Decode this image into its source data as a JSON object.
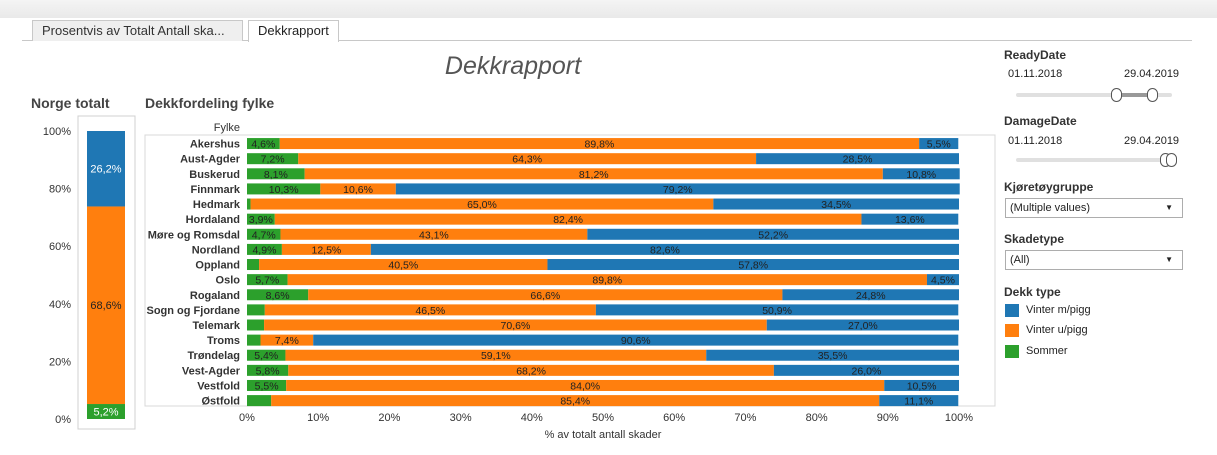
{
  "tabs": [
    {
      "label": "Prosentvis av Totalt Antall ska..."
    },
    {
      "label": "Dekkrapport"
    }
  ],
  "dashboard_title": "Dekkrapport",
  "left_panel": {
    "title": "Norge totalt"
  },
  "right_panel": {
    "title": "Dekkfordeling fylke"
  },
  "colors": {
    "vinter_m_pigg": "#1f77b4",
    "vinter_u_pigg": "#ff7f0e",
    "sommer": "#2ca02c"
  },
  "filters": {
    "ready_date": {
      "label": "ReadyDate",
      "start": "01.11.2018",
      "end": "29.04.2019"
    },
    "damage_date": {
      "label": "DamageDate",
      "start": "01.11.2018",
      "end": "29.04.2019"
    },
    "vehicle_group": {
      "label": "Kjøretøygruppe",
      "value": "(Multiple values)"
    },
    "damage_type": {
      "label": "Skadetype",
      "value": "(All)"
    }
  },
  "legend": {
    "title": "Dekk type",
    "items": [
      {
        "label": "Vinter m/pigg",
        "color": "#1f77b4"
      },
      {
        "label": "Vinter u/pigg",
        "color": "#ff7f0e"
      },
      {
        "label": "Sommer",
        "color": "#2ca02c"
      }
    ]
  },
  "chart_data": [
    {
      "type": "bar",
      "stacked": true,
      "orientation": "vertical",
      "title": "Norge totalt",
      "categories": [
        "Norge"
      ],
      "ylim": [
        0,
        100
      ],
      "y_ticks": [
        "0%",
        "20%",
        "40%",
        "60%",
        "80%",
        "100%"
      ],
      "series": [
        {
          "name": "Sommer",
          "values": [
            5.2
          ],
          "labels": [
            "5,2%"
          ]
        },
        {
          "name": "Vinter u/pigg",
          "values": [
            68.6
          ],
          "labels": [
            "68,6%"
          ]
        },
        {
          "name": "Vinter m/pigg",
          "values": [
            26.2
          ],
          "labels": [
            "26,2%"
          ]
        }
      ]
    },
    {
      "type": "bar",
      "stacked": true,
      "orientation": "horizontal",
      "title": "Dekkfordeling fylke",
      "row_header": "Fylke",
      "xlabel": "% av totalt antall skader",
      "xlim": [
        0,
        100
      ],
      "x_ticks": [
        "0%",
        "10%",
        "20%",
        "30%",
        "40%",
        "50%",
        "60%",
        "70%",
        "80%",
        "90%",
        "100%"
      ],
      "categories": [
        "Akershus",
        "Aust-Agder",
        "Buskerud",
        "Finnmark",
        "Hedmark",
        "Hordaland",
        "Møre og Romsdal",
        "Nordland",
        "Oppland",
        "Oslo",
        "Rogaland",
        "Sogn og Fjordane",
        "Telemark",
        "Troms",
        "Trøndelag",
        "Vest-Agder",
        "Vestfold",
        "Østfold"
      ],
      "series": [
        {
          "name": "Sommer",
          "values": [
            4.6,
            7.2,
            8.1,
            10.3,
            0.5,
            3.9,
            4.7,
            4.9,
            1.7,
            5.7,
            8.6,
            2.5,
            2.4,
            1.9,
            5.4,
            5.8,
            5.5,
            3.4
          ],
          "labels": [
            "4,6%",
            "7,2%",
            "8,1%",
            "10,3%",
            "",
            "3,9%",
            "4,7%",
            "4,9%",
            "",
            "5,7%",
            "8,6%",
            "",
            "",
            "",
            "5,4%",
            "5,8%",
            "5,5%",
            ""
          ]
        },
        {
          "name": "Vinter u/pigg",
          "values": [
            89.8,
            64.3,
            81.2,
            10.6,
            65.0,
            82.4,
            43.1,
            12.5,
            40.5,
            89.8,
            66.6,
            46.5,
            70.6,
            7.4,
            59.1,
            68.2,
            84.0,
            85.4
          ],
          "labels": [
            "89,8%",
            "64,3%",
            "81,2%",
            "10,6%",
            "65,0%",
            "82,4%",
            "43,1%",
            "12,5%",
            "40,5%",
            "89,8%",
            "66,6%",
            "46,5%",
            "70,6%",
            "7,4%",
            "59,1%",
            "68,2%",
            "84,0%",
            "85,4%"
          ]
        },
        {
          "name": "Vinter m/pigg",
          "values": [
            5.5,
            28.5,
            10.8,
            79.2,
            34.5,
            13.6,
            52.2,
            82.6,
            57.8,
            4.5,
            24.8,
            50.9,
            27.0,
            90.6,
            35.5,
            26.0,
            10.5,
            11.1
          ],
          "labels": [
            "5,5%",
            "28,5%",
            "10,8%",
            "79,2%",
            "34,5%",
            "13,6%",
            "52,2%",
            "82,6%",
            "57,8%",
            "4,5%",
            "24,8%",
            "50,9%",
            "27,0%",
            "90,6%",
            "35,5%",
            "26,0%",
            "10,5%",
            "11,1%"
          ]
        }
      ]
    }
  ]
}
